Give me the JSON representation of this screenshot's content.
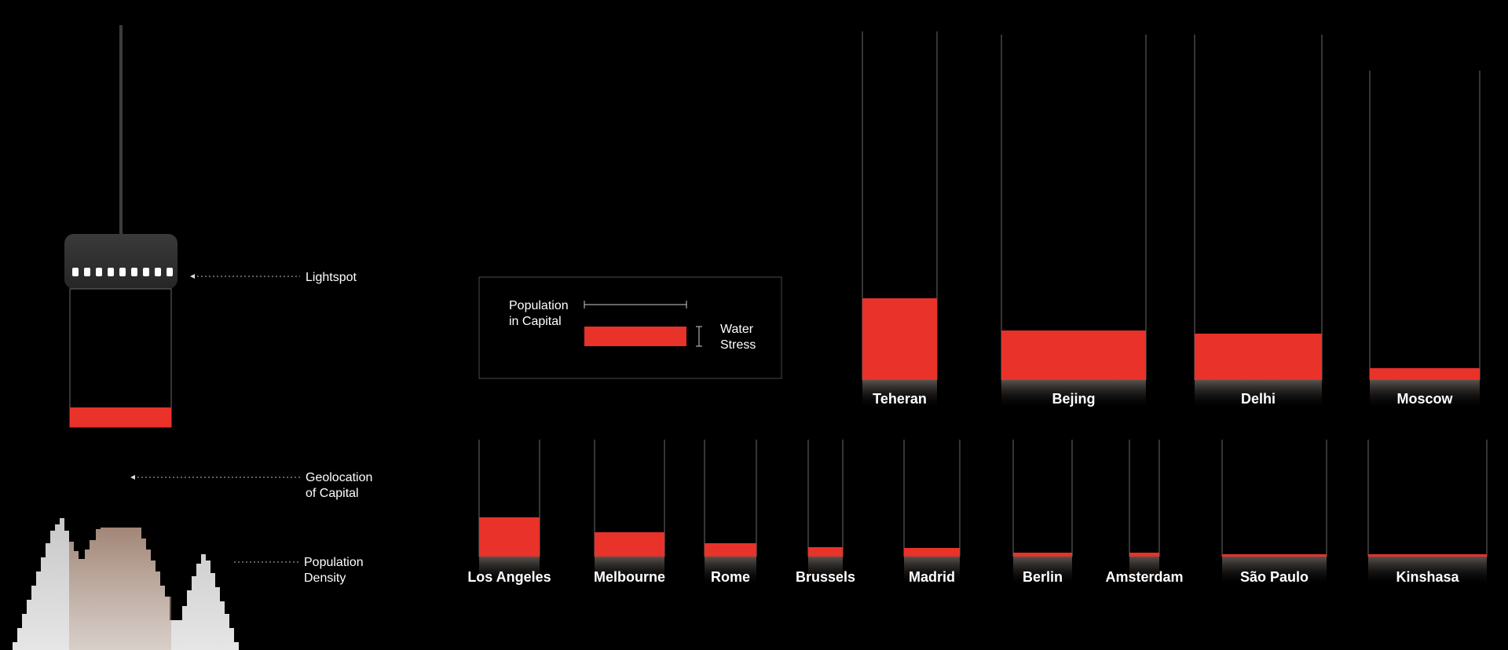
{
  "annotations": {
    "lightspot": "Lightspot",
    "geolocation_line1": "Geolocation",
    "geolocation_line2": "of Capital",
    "density_line1": "Population",
    "density_line2": "Density"
  },
  "legend": {
    "population_line1": "Population",
    "population_line2": "in Capital",
    "water_line1": "Water",
    "water_line2": "Stress"
  },
  "colors": {
    "accent": "#e8322a",
    "background": "#000000",
    "line": "#6a6a6a"
  },
  "chart_data": {
    "type": "bar",
    "encoding": "bar width = population in capital, red fill height = water stress",
    "groups": [
      {
        "cities": [
          {
            "name": "Teheran",
            "population": 95,
            "water_stress": 104
          },
          {
            "name": "Bejing",
            "population": 184,
            "water_stress": 63
          },
          {
            "name": "Delhi",
            "population": 162,
            "water_stress": 59
          },
          {
            "name": "Moscow",
            "population": 140,
            "water_stress": 15
          }
        ]
      },
      {
        "cities": [
          {
            "name": "Los Angeles",
            "population": 77,
            "water_stress": 50
          },
          {
            "name": "Melbourne",
            "population": 89,
            "water_stress": 31
          },
          {
            "name": "Rome",
            "population": 66,
            "water_stress": 17
          },
          {
            "name": "Brussels",
            "population": 44,
            "water_stress": 12
          },
          {
            "name": "Madrid",
            "population": 71,
            "water_stress": 11
          },
          {
            "name": "Berlin",
            "population": 75,
            "water_stress": 5
          },
          {
            "name": "Amsterdam",
            "population": 38,
            "water_stress": 5
          },
          {
            "name": "São Paulo",
            "population": 133,
            "water_stress": 3
          },
          {
            "name": "Kinshasa",
            "population": 151,
            "water_stress": 3
          }
        ]
      }
    ]
  }
}
